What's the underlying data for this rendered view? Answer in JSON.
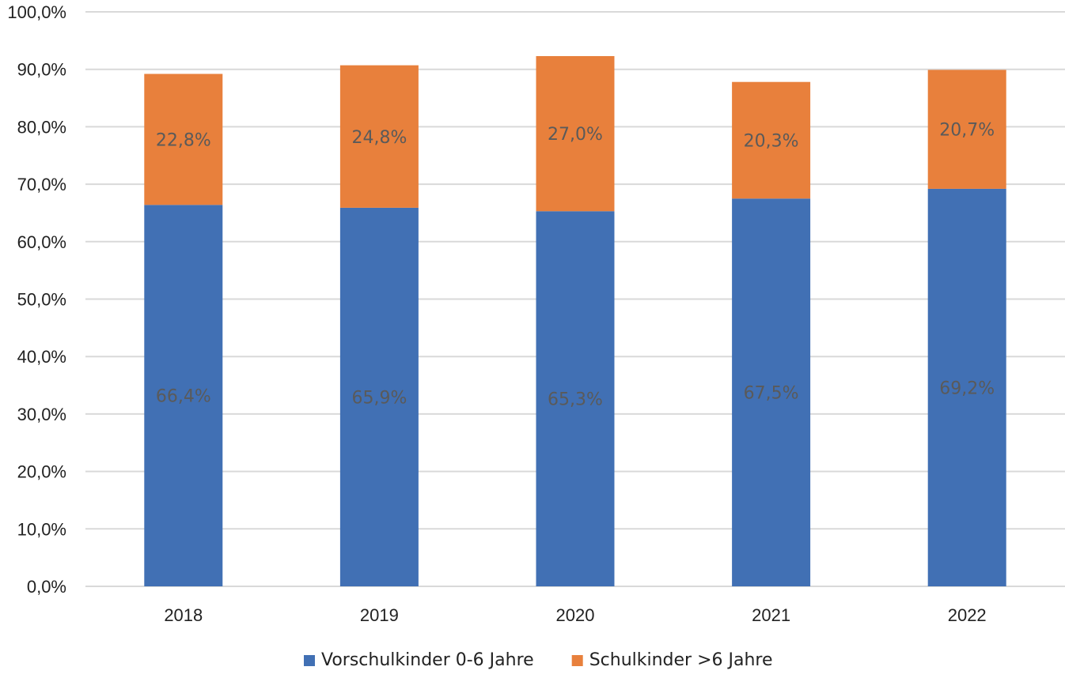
{
  "chart_data": {
    "type": "bar",
    "stacked": true,
    "categories": [
      "2018",
      "2019",
      "2020",
      "2021",
      "2022"
    ],
    "series": [
      {
        "name": "Vorschulkinder 0-6 Jahre",
        "color": "#4170b4",
        "values": [
          66.4,
          65.9,
          65.3,
          67.5,
          69.2
        ],
        "labels": [
          "66,4%",
          "65,9%",
          "65,3%",
          "67,5%",
          "69,2%"
        ]
      },
      {
        "name": "Schulkinder >6 Jahre",
        "color": "#e8803c",
        "values": [
          22.8,
          24.8,
          27.0,
          20.3,
          20.7
        ],
        "labels": [
          "22,8%",
          "24,8%",
          "27,0%",
          "20,3%",
          "20,7%"
        ]
      }
    ],
    "ylim": [
      0,
      100
    ],
    "yticks": [
      0,
      10,
      20,
      30,
      40,
      50,
      60,
      70,
      80,
      90,
      100
    ],
    "ytick_labels": [
      "0,0%",
      "10,0%",
      "20,0%",
      "30,0%",
      "40,0%",
      "50,0%",
      "60,0%",
      "70,0%",
      "80,0%",
      "90,0%",
      "100,0%"
    ],
    "grid": true,
    "legend_position": "bottom-center",
    "gridline_color": "#d9d9d9"
  }
}
